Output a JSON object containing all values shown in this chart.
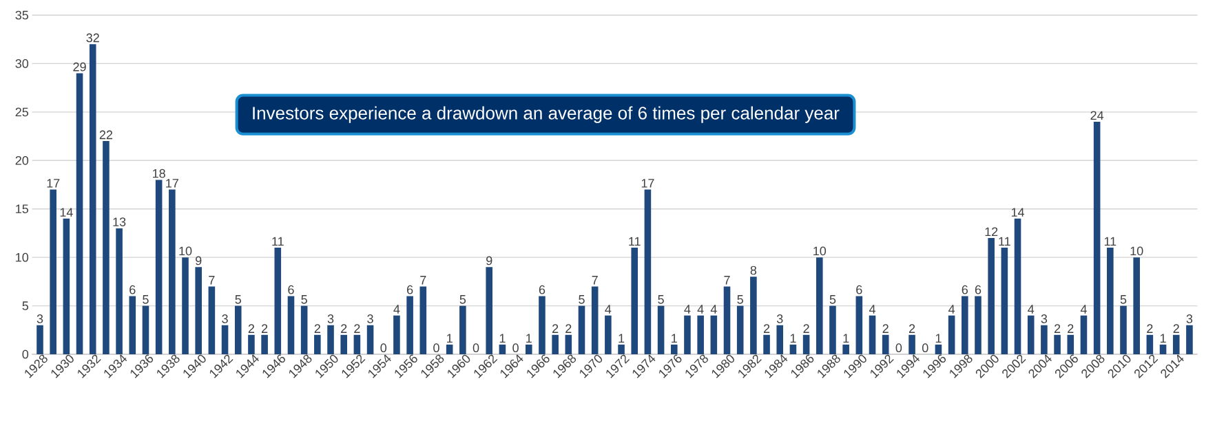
{
  "chart_data": {
    "type": "bar",
    "categories": [
      "1928",
      null,
      "1930",
      null,
      "1932",
      null,
      "1934",
      null,
      "1936",
      null,
      "1938",
      null,
      "1940",
      null,
      "1942",
      null,
      "1944",
      null,
      "1946",
      null,
      "1948",
      null,
      "1950",
      null,
      "1952",
      null,
      "1954",
      null,
      "1956",
      null,
      "1958",
      null,
      "1960",
      null,
      "1962",
      null,
      "1964",
      null,
      "1966",
      null,
      "1968",
      null,
      "1970",
      null,
      "1972",
      null,
      "1974",
      null,
      "1976",
      null,
      "1978",
      null,
      "1980",
      null,
      "1982",
      null,
      "1984",
      null,
      "1986",
      null,
      "1988",
      null,
      "1990",
      null,
      "1992",
      null,
      "1994",
      null,
      "1996",
      null,
      "1998",
      null,
      "2000",
      null,
      "2002",
      null,
      "2004",
      null,
      "2006",
      null,
      "2008",
      null,
      "2010",
      null,
      "2012",
      null,
      "2014",
      null
    ],
    "values": [
      3,
      17,
      14,
      29,
      32,
      22,
      13,
      6,
      5,
      18,
      17,
      10,
      9,
      7,
      3,
      5,
      2,
      2,
      11,
      6,
      5,
      2,
      3,
      2,
      2,
      3,
      0,
      4,
      6,
      7,
      0,
      1,
      5,
      0,
      9,
      1,
      0,
      1,
      6,
      2,
      2,
      5,
      7,
      4,
      1,
      11,
      17,
      5,
      1,
      4,
      4,
      4,
      7,
      5,
      8,
      2,
      3,
      1,
      2,
      10,
      5,
      1,
      6,
      4,
      2,
      0,
      2,
      0,
      1,
      4,
      6,
      6,
      12,
      11,
      14,
      4,
      3,
      2,
      2,
      4,
      24,
      11,
      5,
      10,
      2,
      1,
      2,
      3
    ],
    "color": "#1f497d",
    "ylim": [
      0,
      35
    ],
    "yticks": [
      0,
      5,
      10,
      15,
      20,
      25,
      30,
      35
    ],
    "grid": "y",
    "data_labels": true,
    "annotations": [
      "Investors experience a drawdown an average of 6 times per calendar year"
    ]
  }
}
